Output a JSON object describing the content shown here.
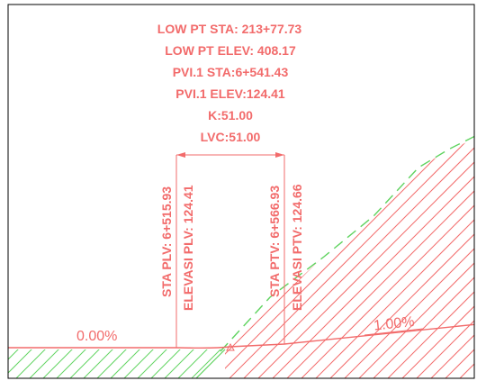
{
  "colors": {
    "profile": "#f26b6b",
    "fill_hatch": "#f26b6b",
    "cut_hatch": "#5fd35f",
    "ground": "#5fd35f",
    "border": "#000000",
    "background": "#ffffff"
  },
  "labels": {
    "low_pt_sta": "LOW PT STA: 213+77.73",
    "low_pt_elev": "LOW PT ELEV: 408.17",
    "pvi_sta": "PVI.1 STA:6+541.43",
    "pvi_elev": "PVI.1 ELEV:124.41",
    "k_value": "K:51.00",
    "lvc_value": "LVC:51.00",
    "sta_plv": "STA PLV: 6+515.93",
    "elevasi_plv": "ELEVASI PLV: 124.41",
    "sta_ptv": "STA PTV: 6+566.93",
    "elevasi_ptv": "ELEVASI PTV: 124.66",
    "grade_left": "0.00%",
    "grade_right": "1.00%"
  }
}
